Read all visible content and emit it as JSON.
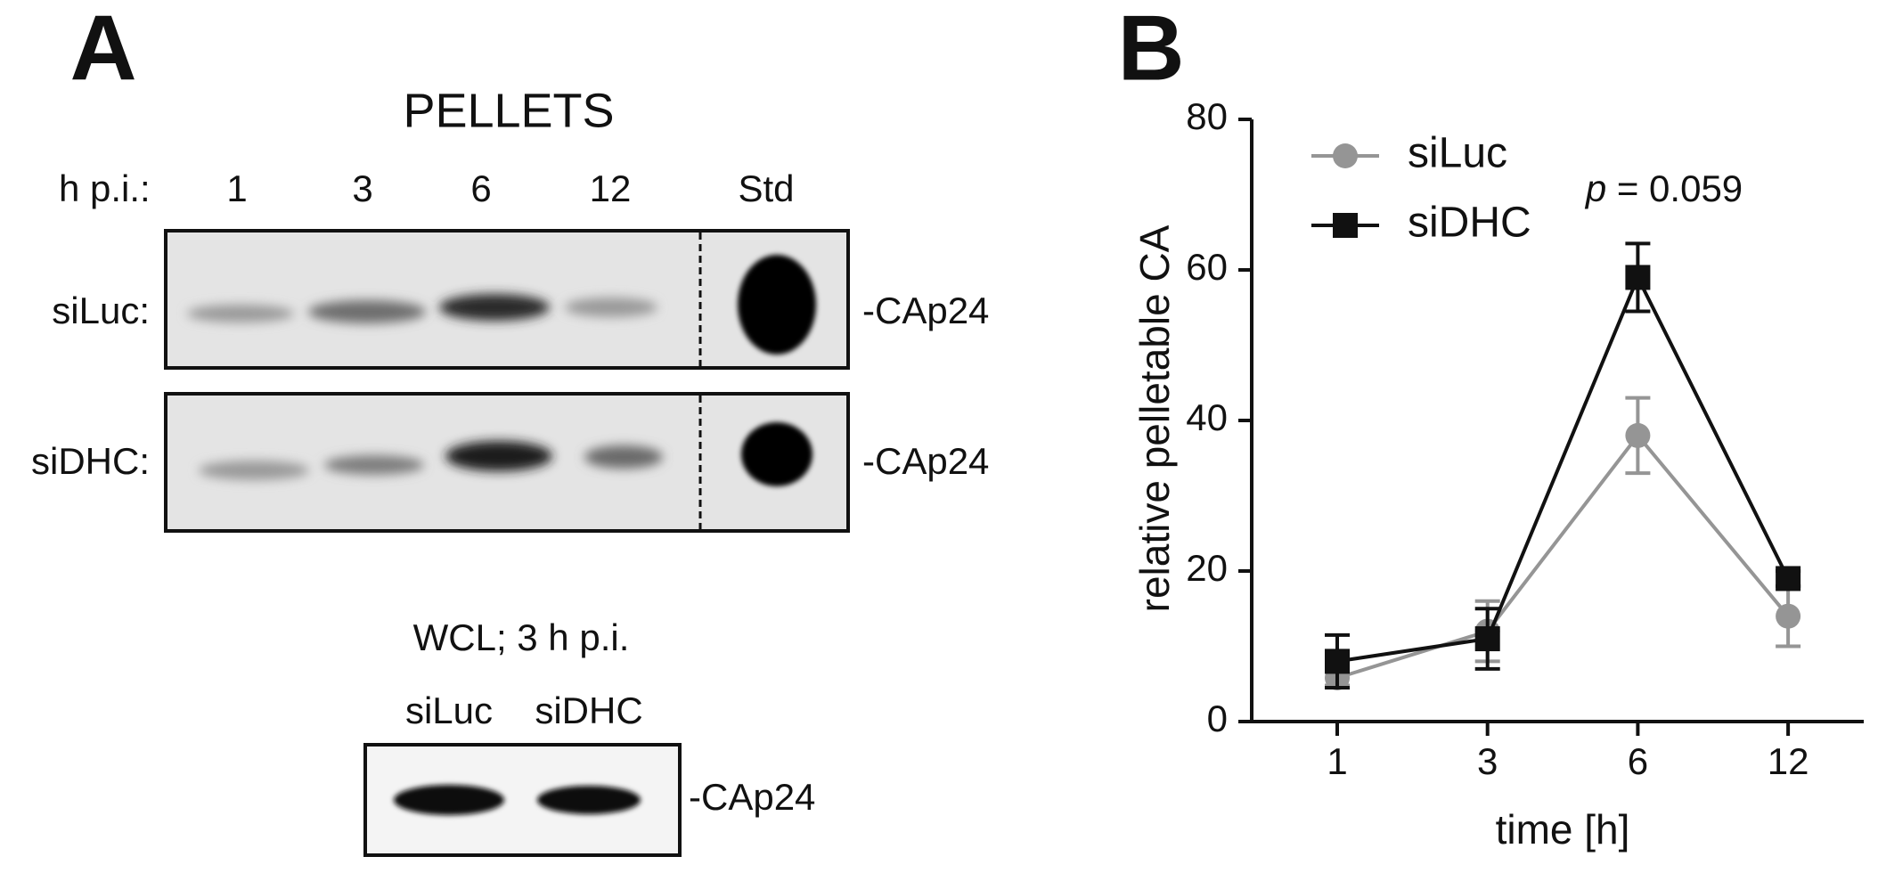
{
  "panel_a": {
    "letter": "A",
    "title": "PELLETS",
    "lane_header": "h p.i.:",
    "lanes": [
      "1",
      "3",
      "6",
      "12",
      "Std"
    ],
    "rows": [
      "siLuc:",
      "siDHC:"
    ],
    "band_label": "-CAp24",
    "wcl_title": "WCL; 3 h p.i.",
    "wcl_lanes": [
      "siLuc",
      "siDHC"
    ],
    "wcl_band_label": "-CAp24"
  },
  "chart_data": {
    "type": "line",
    "letter": "B",
    "y_label": "relative pelletable CA",
    "x_label": "time [h]",
    "annotation": {
      "italic": "p",
      "text": "= 0.059"
    },
    "categories": [
      "1",
      "3",
      "6",
      "12"
    ],
    "ylim": [
      0,
      80
    ],
    "yticks": [
      0,
      20,
      40,
      60,
      80
    ],
    "series": [
      {
        "name": "siLuc",
        "color": "#959595",
        "marker": "circle",
        "values": [
          5.8,
          12,
          38,
          14
        ],
        "errors": [
          1,
          4,
          5,
          4
        ]
      },
      {
        "name": "siDHC",
        "color": "#111111",
        "marker": "square",
        "values": [
          8,
          11,
          59,
          19
        ],
        "errors": [
          3.5,
          4,
          4.5,
          1
        ]
      }
    ]
  }
}
